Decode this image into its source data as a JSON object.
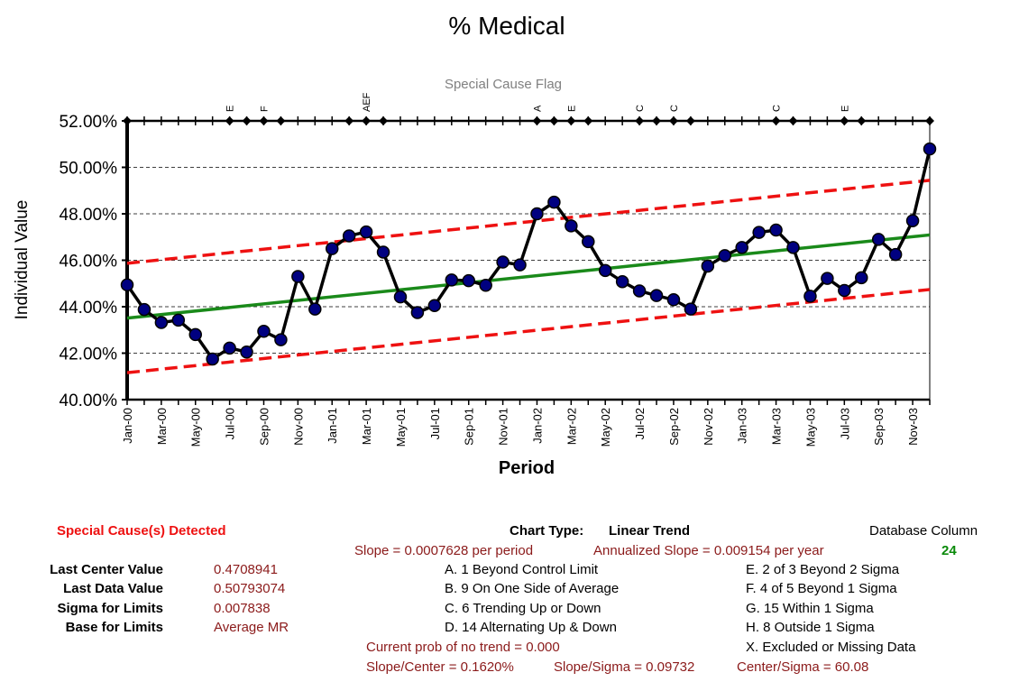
{
  "chart_data": {
    "type": "line",
    "title": "% Medical",
    "subtitle": "Special Cause Flag",
    "xlabel": "Period",
    "ylabel": "Individual Value",
    "ylim": [
      0.4,
      0.52
    ],
    "yticks": [
      "52.00%",
      "50.00%",
      "48.00%",
      "46.00%",
      "44.00%",
      "42.00%",
      "40.00%"
    ],
    "ytick_values": [
      0.52,
      0.5,
      0.48,
      0.46,
      0.44,
      0.42,
      0.4
    ],
    "categories": [
      "Jan-00",
      "Feb-00",
      "Mar-00",
      "Apr-00",
      "May-00",
      "Jun-00",
      "Jul-00",
      "Aug-00",
      "Sep-00",
      "Oct-00",
      "Nov-00",
      "Dec-00",
      "Jan-01",
      "Feb-01",
      "Mar-01",
      "Apr-01",
      "May-01",
      "Jun-01",
      "Jul-01",
      "Aug-01",
      "Sep-01",
      "Oct-01",
      "Nov-01",
      "Dec-01",
      "Jan-02",
      "Feb-02",
      "Mar-02",
      "Apr-02",
      "May-02",
      "Jun-02",
      "Jul-02",
      "Aug-02",
      "Sep-02",
      "Oct-02",
      "Nov-02",
      "Dec-02",
      "Jan-03",
      "Feb-03",
      "Mar-03",
      "Apr-03",
      "May-03",
      "Jun-03",
      "Jul-03",
      "Aug-03",
      "Sep-03",
      "Oct-03",
      "Nov-03",
      "Dec-03"
    ],
    "x_tick_labels": [
      "Jan-00",
      "Mar-00",
      "May-00",
      "Jul-00",
      "Sep-00",
      "Nov-00",
      "Jan-01",
      "Mar-01",
      "May-01",
      "Jul-01",
      "Sep-01",
      "Nov-01",
      "Jan-02",
      "Mar-02",
      "May-02",
      "Jul-02",
      "Sep-02",
      "Nov-02",
      "Jan-03",
      "Mar-03",
      "May-03",
      "Jul-03",
      "Sep-03",
      "Nov-03"
    ],
    "x_tick_indices": [
      0,
      2,
      4,
      6,
      8,
      10,
      12,
      14,
      16,
      18,
      20,
      22,
      24,
      26,
      28,
      30,
      32,
      34,
      36,
      38,
      40,
      42,
      44,
      46
    ],
    "series": [
      {
        "values": [
          0.4494,
          0.4388,
          0.4332,
          0.4342,
          0.428,
          0.4175,
          0.4222,
          0.4205,
          0.4294,
          0.4258,
          0.453,
          0.439,
          0.465,
          0.4705,
          0.4722,
          0.4635,
          0.4442,
          0.4375,
          0.4405,
          0.4515,
          0.4512,
          0.4492,
          0.4592,
          0.458,
          0.48,
          0.485,
          0.4748,
          0.468,
          0.4556,
          0.4508,
          0.4468,
          0.4448,
          0.443,
          0.439,
          0.4575,
          0.462,
          0.4655,
          0.472,
          0.473,
          0.4655,
          0.4445,
          0.4522,
          0.447,
          0.4525,
          0.469,
          0.4625,
          0.477,
          0.5079
        ],
        "color": "#000080"
      }
    ],
    "center_line": {
      "start": 0.4351,
      "end": 0.4709,
      "color": "#1a8a1a"
    },
    "ucl": {
      "start": 0.4587,
      "end": 0.4944,
      "color": "#ee1111"
    },
    "lcl": {
      "start": 0.4116,
      "end": 0.4474,
      "color": "#ee1111"
    },
    "flags": [
      {
        "index": 6,
        "label": "E"
      },
      {
        "index": 8,
        "label": "F"
      },
      {
        "index": 14,
        "label": "AEF"
      },
      {
        "index": 24,
        "label": "A"
      },
      {
        "index": 26,
        "label": "E"
      },
      {
        "index": 30,
        "label": "C"
      },
      {
        "index": 32,
        "label": "C"
      },
      {
        "index": 38,
        "label": "C"
      },
      {
        "index": 42,
        "label": "E"
      }
    ],
    "flag_marker_indices": [
      0,
      6,
      7,
      8,
      9,
      13,
      14,
      15,
      24,
      25,
      26,
      27,
      30,
      31,
      32,
      33,
      38,
      39,
      42,
      43,
      47
    ],
    "grid": "horizontal-dashed",
    "legend": "none"
  },
  "panel": {
    "special_cause": "Special Cause(s) Detected",
    "chart_type_label": "Chart Type:",
    "chart_type_value": "Linear Trend",
    "database_column_label": "Database Column",
    "database_column_value": "24",
    "slope": "Slope = 0.0007628 per period",
    "annualized_slope": "Annualized Slope = 0.009154 per year",
    "stats": [
      {
        "label": "Last Center Value",
        "value": "0.4708941"
      },
      {
        "label": "Last Data Value",
        "value": "0.50793074"
      },
      {
        "label": "Sigma for Limits",
        "value": "0.007838"
      },
      {
        "label": "Base for Limits",
        "value": "Average MR"
      }
    ],
    "rules_left": [
      "A. 1 Beyond Control Limit",
      "B. 9 On One Side of Average",
      "C. 6 Trending Up or Down",
      "D. 14 Alternating  Up & Down"
    ],
    "rules_right": [
      "E. 2 of 3 Beyond 2 Sigma",
      "F. 4 of 5 Beyond 1 Sigma",
      "G. 15 Within 1 Sigma",
      "H. 8 Outside 1 Sigma",
      "X. Excluded or Missing Data"
    ],
    "prob_no_trend": "Current prob of no trend = 0.000",
    "slope_center": "Slope/Center = 0.1620%",
    "slope_sigma": "Slope/Sigma = 0.09732",
    "center_sigma": "Center/Sigma = 60.08"
  }
}
